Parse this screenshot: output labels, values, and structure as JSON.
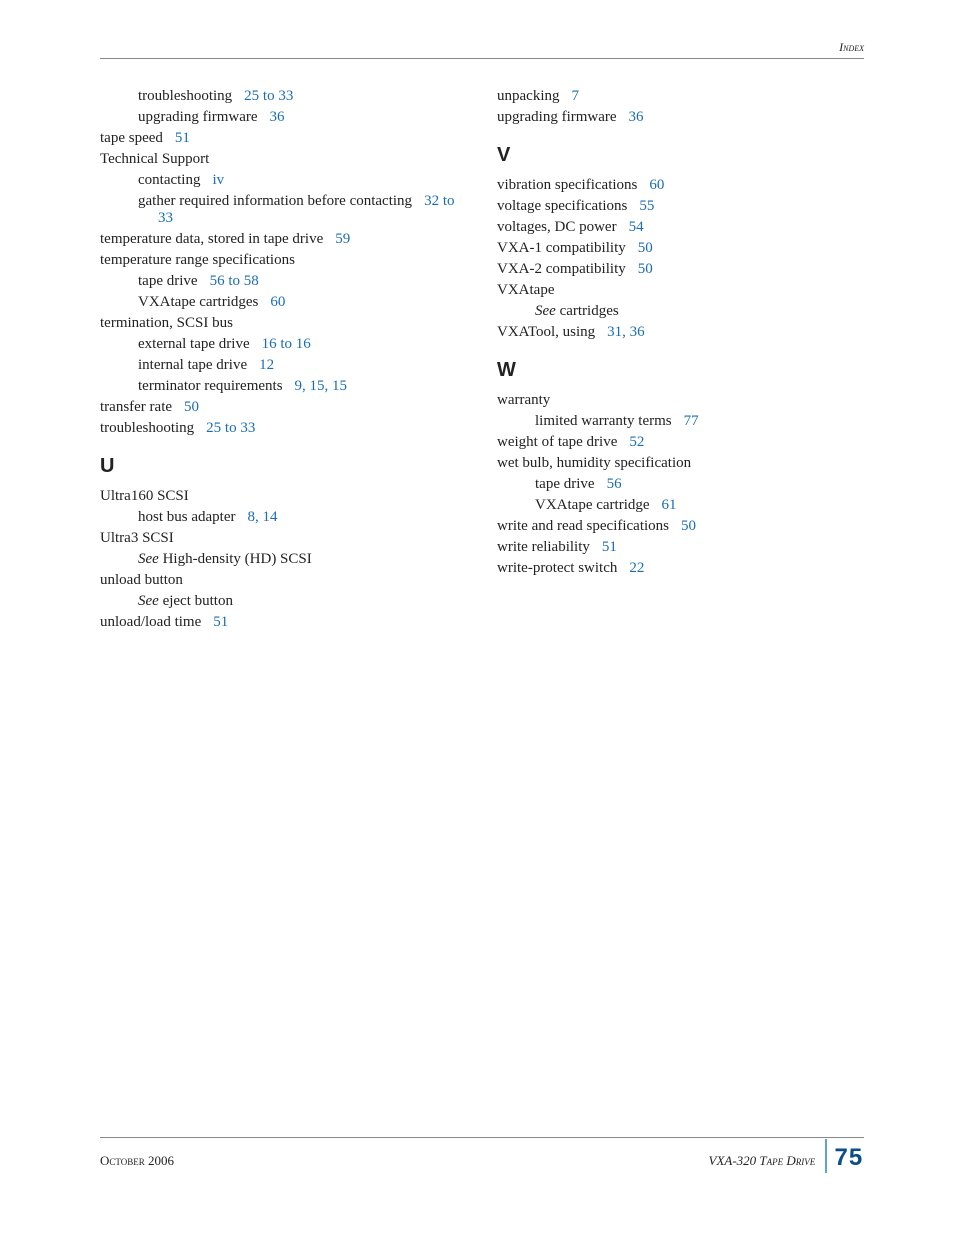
{
  "running_head": "Index",
  "footer": {
    "date": "October 2006",
    "product": "VXA-320 Tape Drive",
    "page_number": "75"
  },
  "letters": {
    "u": "U",
    "v": "V",
    "w": "W"
  },
  "entries": {
    "left": [
      {
        "lvl": 1,
        "text": "troubleshooting",
        "pages": "25 to 33"
      },
      {
        "lvl": 1,
        "text": "upgrading firmware",
        "pages": "36"
      },
      {
        "lvl": 0,
        "text": "tape speed",
        "pages": "51"
      },
      {
        "lvl": 0,
        "text": "Technical Support"
      },
      {
        "lvl": 1,
        "text": "contacting",
        "pages": "iv"
      },
      {
        "lvl": 1,
        "text": "gather required information before contacting",
        "pages": "32 to 33"
      },
      {
        "lvl": 0,
        "text": "temperature data, stored in tape drive",
        "pages": "59"
      },
      {
        "lvl": 0,
        "text": "temperature range specifications"
      },
      {
        "lvl": 1,
        "text": "tape drive",
        "pages": "56 to 58"
      },
      {
        "lvl": 1,
        "text": "VXAtape cartridges",
        "pages": "60"
      },
      {
        "lvl": 0,
        "text": "termination, SCSI bus"
      },
      {
        "lvl": 1,
        "text": "external tape drive",
        "pages": "16 to 16"
      },
      {
        "lvl": 1,
        "text": "internal tape drive",
        "pages": "12"
      },
      {
        "lvl": 1,
        "text": "terminator requirements",
        "pages": "9, 15, 15"
      },
      {
        "lvl": 0,
        "text": "transfer rate",
        "pages": "50"
      },
      {
        "lvl": 0,
        "text": "troubleshooting",
        "pages": "25 to 33"
      }
    ],
    "u_section": [
      {
        "lvl": 0,
        "text": "Ultra160 SCSI"
      },
      {
        "lvl": 1,
        "text": "host bus adapter",
        "pages": "8, 14"
      },
      {
        "lvl": 0,
        "text": "Ultra3 SCSI"
      },
      {
        "lvl": 1,
        "see": "See",
        "text": "High-density (HD) SCSI"
      },
      {
        "lvl": 0,
        "text": "unload button"
      },
      {
        "lvl": 1,
        "see": "See",
        "text": "eject button"
      },
      {
        "lvl": 0,
        "text": "unload/load time",
        "pages": "51"
      }
    ],
    "right_top": [
      {
        "lvl": 0,
        "text": "unpacking",
        "pages": "7"
      },
      {
        "lvl": 0,
        "text": "upgrading firmware",
        "pages": "36"
      }
    ],
    "v_section": [
      {
        "lvl": 0,
        "text": "vibration specifications",
        "pages": "60"
      },
      {
        "lvl": 0,
        "text": "voltage specifications",
        "pages": "55"
      },
      {
        "lvl": 0,
        "text": "voltages, DC power",
        "pages": "54"
      },
      {
        "lvl": 0,
        "text": "VXA-1 compatibility",
        "pages": "50"
      },
      {
        "lvl": 0,
        "text": "VXA-2 compatibility",
        "pages": "50"
      },
      {
        "lvl": 0,
        "text": "VXAtape"
      },
      {
        "lvl": 1,
        "see": "See",
        "text": "cartridges"
      },
      {
        "lvl": 0,
        "text": "VXATool, using",
        "pages": "31, 36"
      }
    ],
    "w_section": [
      {
        "lvl": 0,
        "text": "warranty"
      },
      {
        "lvl": 1,
        "text": "limited warranty terms",
        "pages": "77"
      },
      {
        "lvl": 0,
        "text": "weight of tape drive",
        "pages": "52"
      },
      {
        "lvl": 0,
        "text": "wet bulb, humidity specification"
      },
      {
        "lvl": 1,
        "text": "tape drive",
        "pages": "56"
      },
      {
        "lvl": 1,
        "text": "VXAtape cartridge",
        "pages": "61"
      },
      {
        "lvl": 0,
        "text": "write and read specifications",
        "pages": "50"
      },
      {
        "lvl": 0,
        "text": "write reliability",
        "pages": "51"
      },
      {
        "lvl": 0,
        "text": "write-protect switch",
        "pages": "22"
      }
    ]
  }
}
